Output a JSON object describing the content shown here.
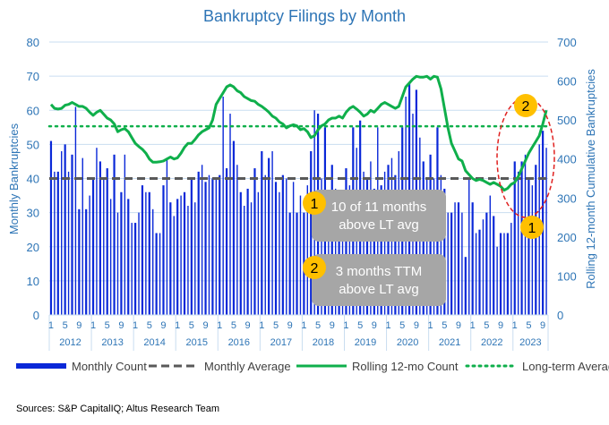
{
  "chart_data": {
    "type": "bar+line",
    "title": "Bankruptcy Filings by Month",
    "ylabel": "Monthly Bankruptcies",
    "y2label": "Rolling 12-month Cumulative Bankruptcies",
    "ylim": [
      0,
      80
    ],
    "y2lim": [
      0,
      700
    ],
    "yticks": [
      "0",
      "10",
      "20",
      "30",
      "40",
      "50",
      "60",
      "70",
      "80"
    ],
    "y2ticks": [
      "0",
      "100",
      "200",
      "300",
      "400",
      "500",
      "600",
      "700"
    ],
    "years": [
      "2012",
      "2013",
      "2014",
      "2015",
      "2016",
      "2017",
      "2018",
      "2019",
      "2020",
      "2021",
      "2022",
      "2023"
    ],
    "month_ticks": [
      "1",
      "5",
      "9"
    ],
    "grid": true,
    "legend_position": "bottom",
    "colors": {
      "bars": "#0A28D8",
      "avg": "#595959",
      "rolling": "#0FAF4B",
      "lt": "#0FAF4B",
      "title": "#2E75B6",
      "axis": "#2E75B6",
      "grid": "#C9DDF0",
      "badge": "#FFC000",
      "box": "#A6A6A6",
      "ellipse": "#E0201F"
    },
    "series": [
      {
        "name": "Monthly Count",
        "axis": "left",
        "type": "bar",
        "values": [
          51,
          42,
          42,
          48,
          50,
          42,
          47,
          61,
          31,
          46,
          31,
          35,
          40,
          49,
          45,
          40,
          43,
          34,
          47,
          30,
          36,
          47,
          34,
          27,
          27,
          30,
          38,
          36,
          36,
          31,
          24,
          24,
          38,
          46,
          33,
          29,
          34,
          35,
          36,
          32,
          40,
          33,
          42,
          44,
          39,
          41,
          40,
          40,
          41,
          64,
          43,
          59,
          51,
          44,
          36,
          32,
          37,
          33,
          43,
          36,
          48,
          41,
          46,
          48,
          39,
          36,
          41,
          40,
          30,
          39,
          30,
          35,
          30,
          38,
          48,
          60,
          59,
          40,
          55,
          34,
          44,
          37,
          35,
          30,
          43,
          38,
          55,
          49,
          57,
          42,
          40,
          45,
          37,
          55,
          38,
          42,
          44,
          46,
          41,
          48,
          55,
          64,
          68,
          59,
          66,
          52,
          45,
          40,
          47,
          40,
          55,
          41,
          37,
          30,
          30,
          33,
          33,
          30,
          17,
          40,
          33,
          24,
          25,
          28,
          30,
          35,
          29,
          20,
          24,
          24,
          24,
          27,
          45,
          42,
          45,
          47,
          40,
          38,
          44,
          50,
          54,
          49
        ]
      },
      {
        "name": "Monthly Average",
        "axis": "left",
        "type": "hline",
        "value": 40
      },
      {
        "name": "Rolling 12-mo Count",
        "axis": "right",
        "type": "line",
        "values": [
          540,
          530,
          528,
          530,
          538,
          540,
          545,
          540,
          535,
          535,
          530,
          520,
          512,
          520,
          525,
          515,
          505,
          500,
          490,
          470,
          475,
          478,
          470,
          455,
          440,
          432,
          425,
          415,
          400,
          392,
          392,
          393,
          395,
          400,
          405,
          400,
          403,
          415,
          430,
          440,
          440,
          450,
          462,
          470,
          475,
          480,
          500,
          540,
          555,
          570,
          585,
          590,
          585,
          575,
          570,
          560,
          555,
          550,
          548,
          540,
          535,
          528,
          520,
          510,
          505,
          495,
          490,
          480,
          485,
          488,
          485,
          475,
          478,
          470,
          455,
          460,
          475,
          485,
          490,
          500,
          505,
          505,
          510,
          505,
          520,
          530,
          535,
          528,
          520,
          510,
          515,
          525,
          520,
          530,
          540,
          545,
          540,
          535,
          530,
          535,
          560,
          585,
          595,
          605,
          612,
          610,
          610,
          612,
          605,
          612,
          610,
          580,
          530,
          480,
          440,
          420,
          400,
          395,
          370,
          360,
          350,
          345,
          348,
          345,
          340,
          335,
          340,
          335,
          330,
          320,
          325,
          335,
          340,
          355,
          375,
          395,
          415,
          430,
          445,
          460,
          490,
          525
        ]
      },
      {
        "name": "Long-term Average",
        "axis": "right",
        "type": "hline",
        "value": 484
      }
    ],
    "annotations": [
      {
        "badge": "1",
        "text_lines": [
          "10 of 11 months",
          "above LT avg"
        ]
      },
      {
        "badge": "2",
        "text_lines": [
          "3 months TTM",
          "above LT avg"
        ]
      }
    ],
    "callout_badges": [
      "2",
      "1"
    ]
  },
  "source": "Sources: S&P CapitalIQ; Altus Research Team"
}
